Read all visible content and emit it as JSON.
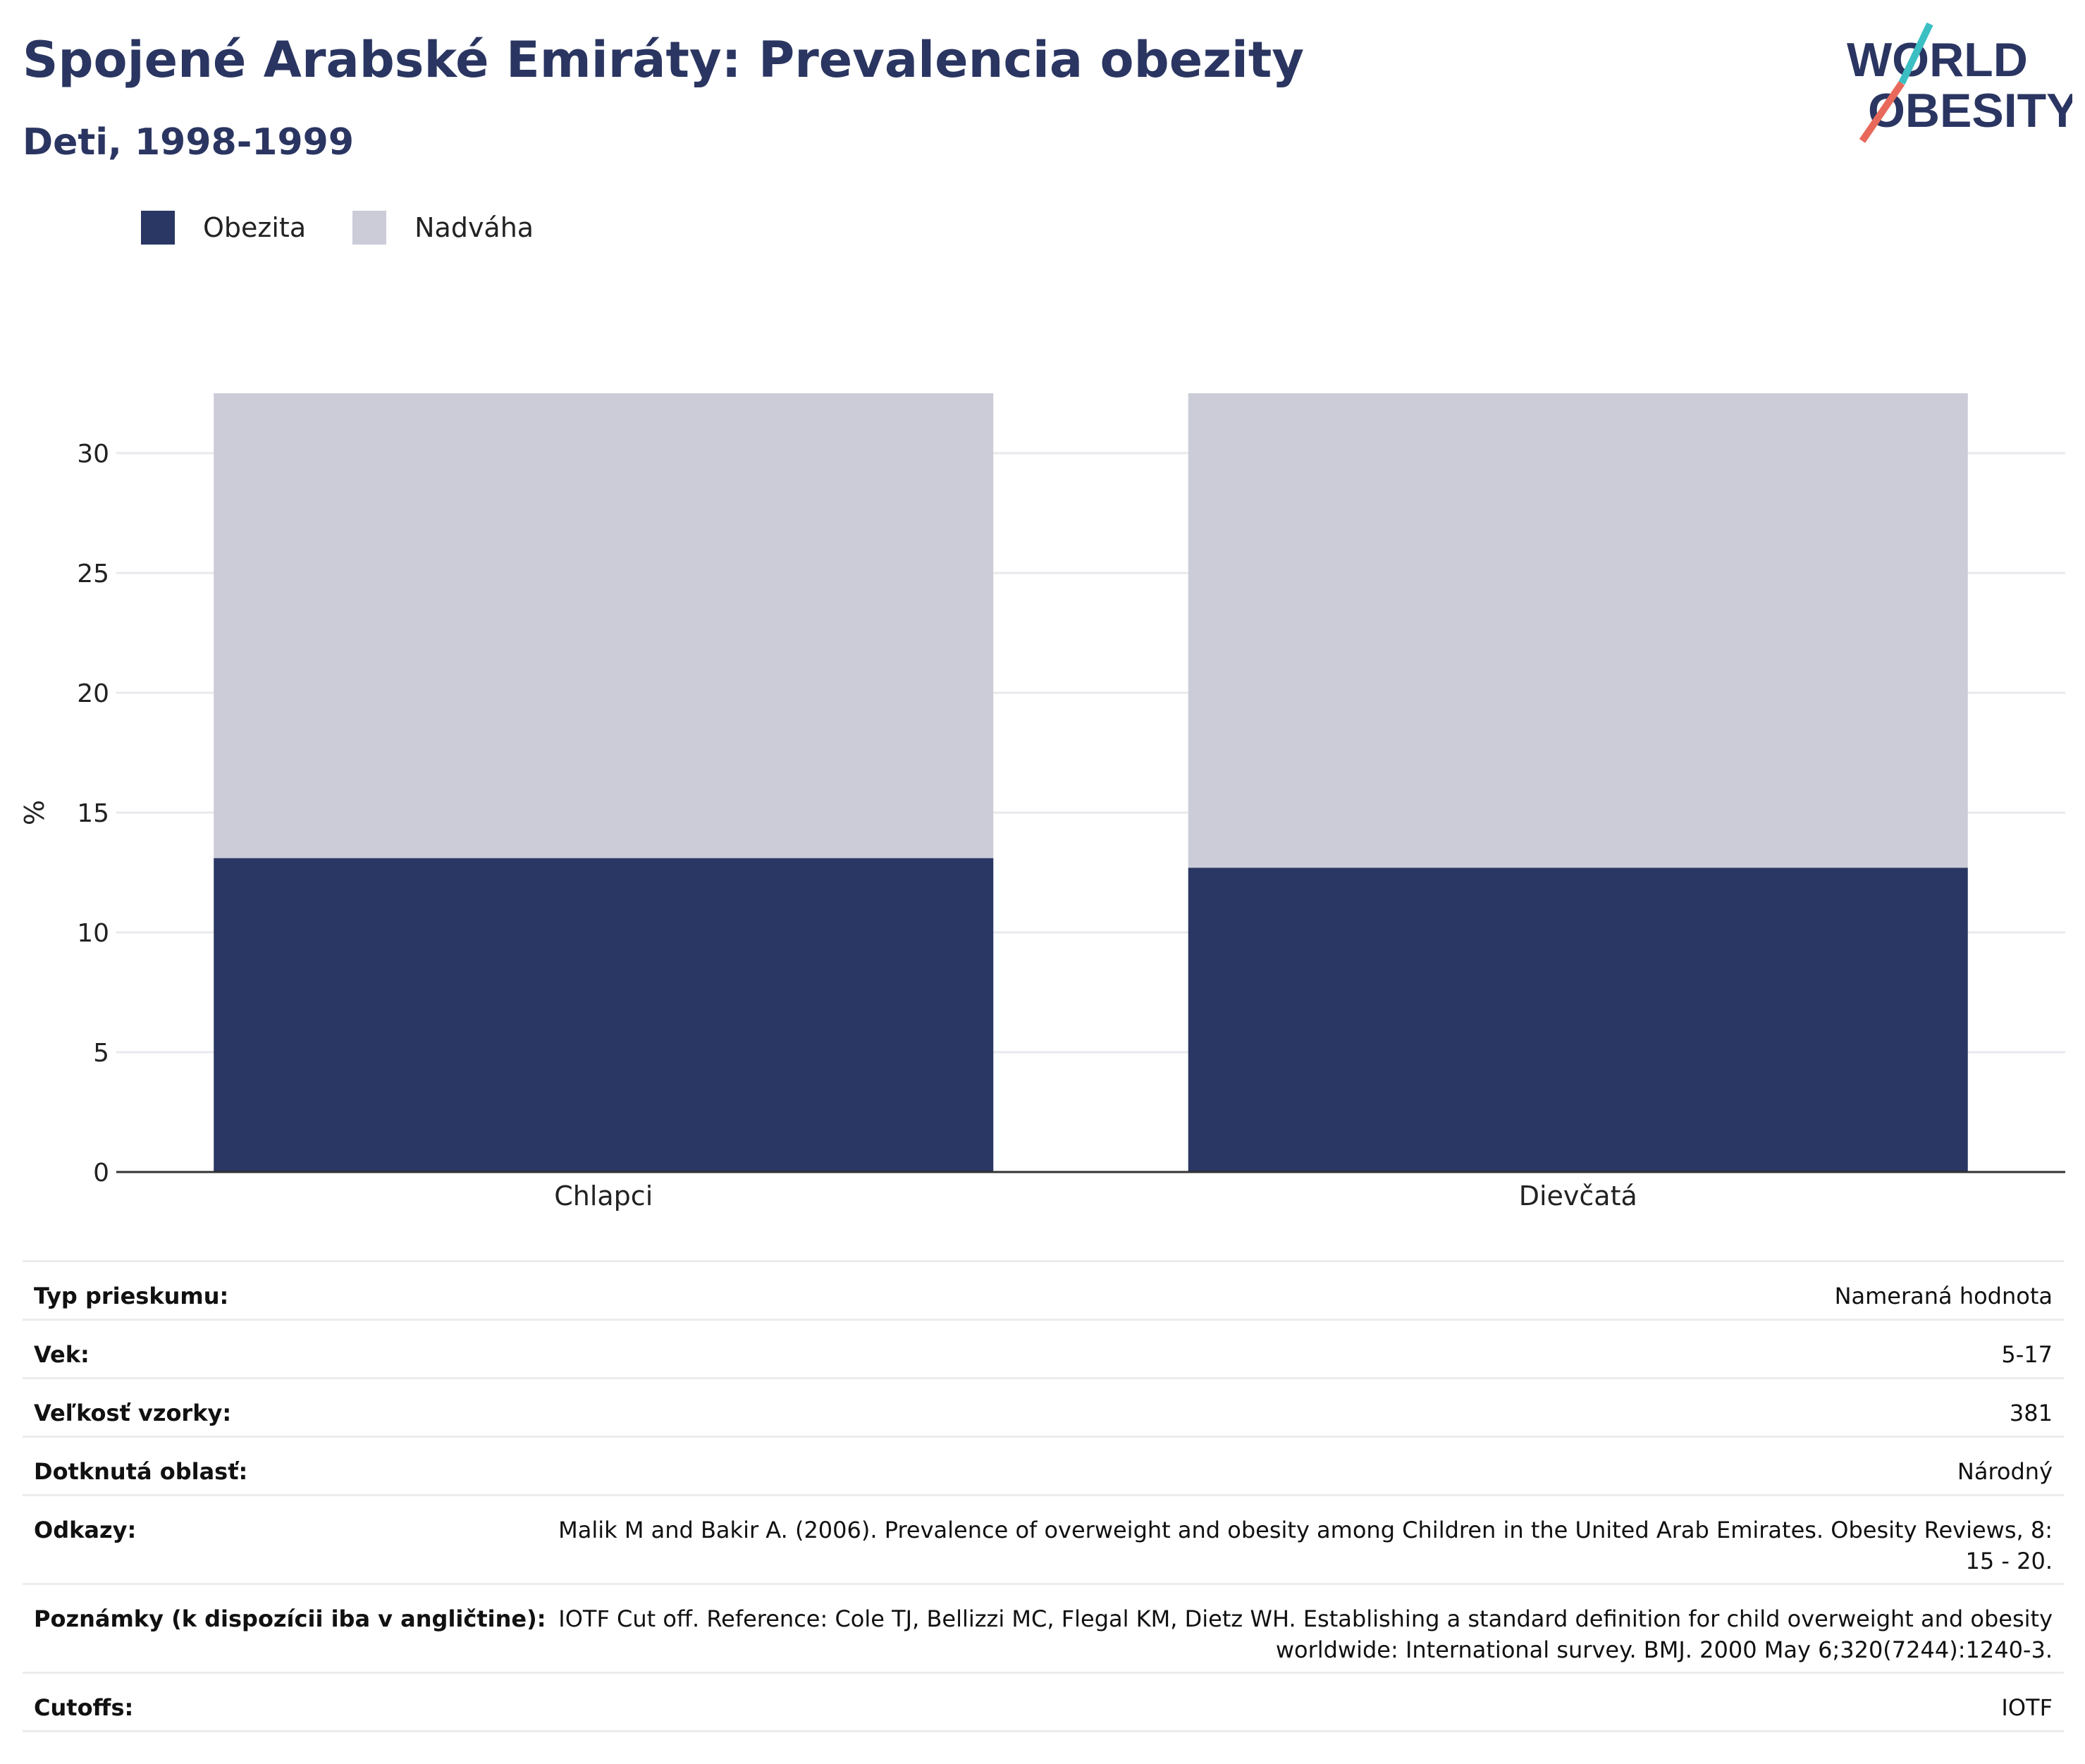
{
  "header": {
    "title": "Spojené Arabské Emiráty: Prevalencia obezity",
    "subtitle": "Deti, 1998-1999"
  },
  "logo": {
    "line1": "WORLD",
    "line2": "OBESITY",
    "colors": {
      "text": "#2a3561",
      "slash_teal": "#3bbfc3",
      "slash_red": "#e8695b"
    }
  },
  "legend": [
    {
      "label": "Obezita",
      "color": "#2a3663"
    },
    {
      "label": "Nadváha",
      "color": "#cbccd8"
    }
  ],
  "chart_data": {
    "type": "bar",
    "stacked": true,
    "categories": [
      "Chlapci",
      "Dievčatá"
    ],
    "series": [
      {
        "name": "Obezita",
        "color": "#2a3663",
        "values": [
          13.1,
          12.7
        ]
      },
      {
        "name": "Nadváha",
        "color": "#cbccd8",
        "values": [
          19.4,
          19.8
        ]
      }
    ],
    "ylabel": "%",
    "xlabel": "",
    "ylim": [
      0,
      33
    ],
    "yticks": [
      0,
      5,
      10,
      15,
      20,
      25,
      30
    ],
    "grid": true
  },
  "meta": [
    {
      "key": "Typ prieskumu:",
      "value": "Nameraná hodnota"
    },
    {
      "key": "Vek:",
      "value": "5-17"
    },
    {
      "key": "Veľkosť vzorky:",
      "value": "381"
    },
    {
      "key": "Dotknutá oblasť:",
      "value": "Národný"
    },
    {
      "key": "Odkazy:",
      "value": "Malik M and Bakir A. (2006). Prevalence of overweight and obesity among Children in the United Arab Emirates. Obesity Reviews, 8: 15 - 20."
    },
    {
      "key": "Poznámky (k dispozícii iba v angličtine):",
      "value": "IOTF Cut off. Reference: Cole TJ, Bellizzi MC, Flegal KM, Dietz WH. Establishing a standard definition for child overweight and obesity worldwide: International survey. BMJ. 2000 May 6;320(7244):1240-3."
    },
    {
      "key": "Cutoffs:",
      "value": "IOTF"
    }
  ]
}
